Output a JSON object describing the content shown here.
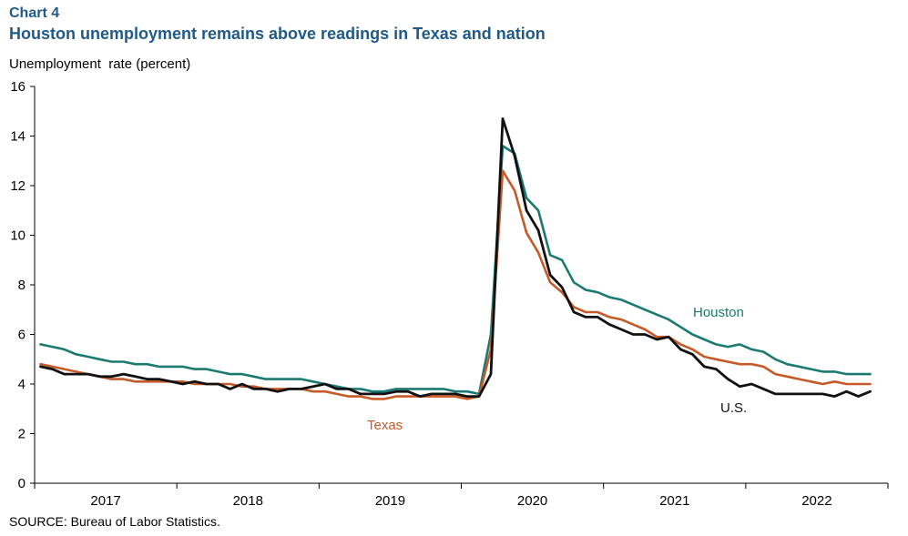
{
  "header": {
    "label": "Chart 4",
    "title": "Houston unemployment remains above readings in Texas and nation",
    "ylabel": "Unemployment  rate (percent)"
  },
  "footer": {
    "source": "SOURCE: Bureau of Labor Statistics."
  },
  "chart_data": {
    "type": "line",
    "title": "Houston unemployment remains above readings in Texas and nation",
    "ylabel": "Unemployment  rate (percent)",
    "xlabel": "",
    "ylim": [
      0,
      16
    ],
    "yticks": [
      0,
      2,
      4,
      6,
      8,
      10,
      12,
      14,
      16
    ],
    "x_start": "2017-01",
    "x_end": "2022-12",
    "year_labels": [
      "2017",
      "2018",
      "2019",
      "2020",
      "2021",
      "2022"
    ],
    "grid": false,
    "legend": "inline labels",
    "series": [
      {
        "name": "Houston",
        "color": "#1a7a73",
        "values": [
          5.6,
          5.5,
          5.4,
          5.2,
          5.1,
          5.0,
          4.9,
          4.9,
          4.8,
          4.8,
          4.7,
          4.7,
          4.7,
          4.6,
          4.6,
          4.5,
          4.4,
          4.4,
          4.3,
          4.2,
          4.2,
          4.2,
          4.2,
          4.1,
          4.0,
          3.9,
          3.8,
          3.8,
          3.7,
          3.7,
          3.8,
          3.8,
          3.8,
          3.8,
          3.8,
          3.7,
          3.7,
          3.6,
          6.0,
          13.6,
          13.3,
          11.5,
          11.0,
          9.2,
          9.0,
          8.1,
          7.8,
          7.7,
          7.5,
          7.4,
          7.2,
          7.0,
          6.8,
          6.6,
          6.3,
          6.0,
          5.8,
          5.6,
          5.5,
          5.6,
          5.4,
          5.3,
          5.0,
          4.8,
          4.7,
          4.6,
          4.5,
          4.5,
          4.4,
          4.4,
          4.4
        ]
      },
      {
        "name": "Texas",
        "color": "#c65a28",
        "values": [
          4.8,
          4.7,
          4.6,
          4.5,
          4.4,
          4.3,
          4.2,
          4.2,
          4.1,
          4.1,
          4.1,
          4.1,
          4.1,
          4.0,
          4.0,
          4.0,
          4.0,
          3.9,
          3.9,
          3.8,
          3.8,
          3.8,
          3.8,
          3.7,
          3.7,
          3.6,
          3.5,
          3.5,
          3.4,
          3.4,
          3.5,
          3.5,
          3.5,
          3.5,
          3.5,
          3.5,
          3.4,
          3.5,
          5.4,
          12.6,
          11.8,
          10.1,
          9.3,
          8.1,
          7.7,
          7.1,
          6.9,
          6.9,
          6.7,
          6.6,
          6.4,
          6.2,
          5.9,
          5.9,
          5.6,
          5.4,
          5.1,
          5.0,
          4.9,
          4.8,
          4.8,
          4.7,
          4.4,
          4.3,
          4.2,
          4.1,
          4.0,
          4.1,
          4.0,
          4.0,
          4.0
        ]
      },
      {
        "name": "U.S.",
        "color": "#111111",
        "values": [
          4.7,
          4.6,
          4.4,
          4.4,
          4.4,
          4.3,
          4.3,
          4.4,
          4.3,
          4.2,
          4.2,
          4.1,
          4.0,
          4.1,
          4.0,
          4.0,
          3.8,
          4.0,
          3.8,
          3.8,
          3.7,
          3.8,
          3.8,
          3.9,
          4.0,
          3.8,
          3.8,
          3.6,
          3.6,
          3.6,
          3.7,
          3.7,
          3.5,
          3.6,
          3.6,
          3.6,
          3.5,
          3.5,
          4.4,
          14.7,
          13.2,
          11.0,
          10.2,
          8.4,
          7.9,
          6.9,
          6.7,
          6.7,
          6.4,
          6.2,
          6.0,
          6.0,
          5.8,
          5.9,
          5.4,
          5.2,
          4.7,
          4.6,
          4.2,
          3.9,
          4.0,
          3.8,
          3.6,
          3.6,
          3.6,
          3.6,
          3.6,
          3.5,
          3.7,
          3.5,
          3.7
        ]
      }
    ],
    "annotations": [
      {
        "text": "Houston",
        "series": "Houston"
      },
      {
        "text": "Texas",
        "series": "Texas"
      },
      {
        "text": "U.S.",
        "series": "U.S."
      }
    ]
  }
}
